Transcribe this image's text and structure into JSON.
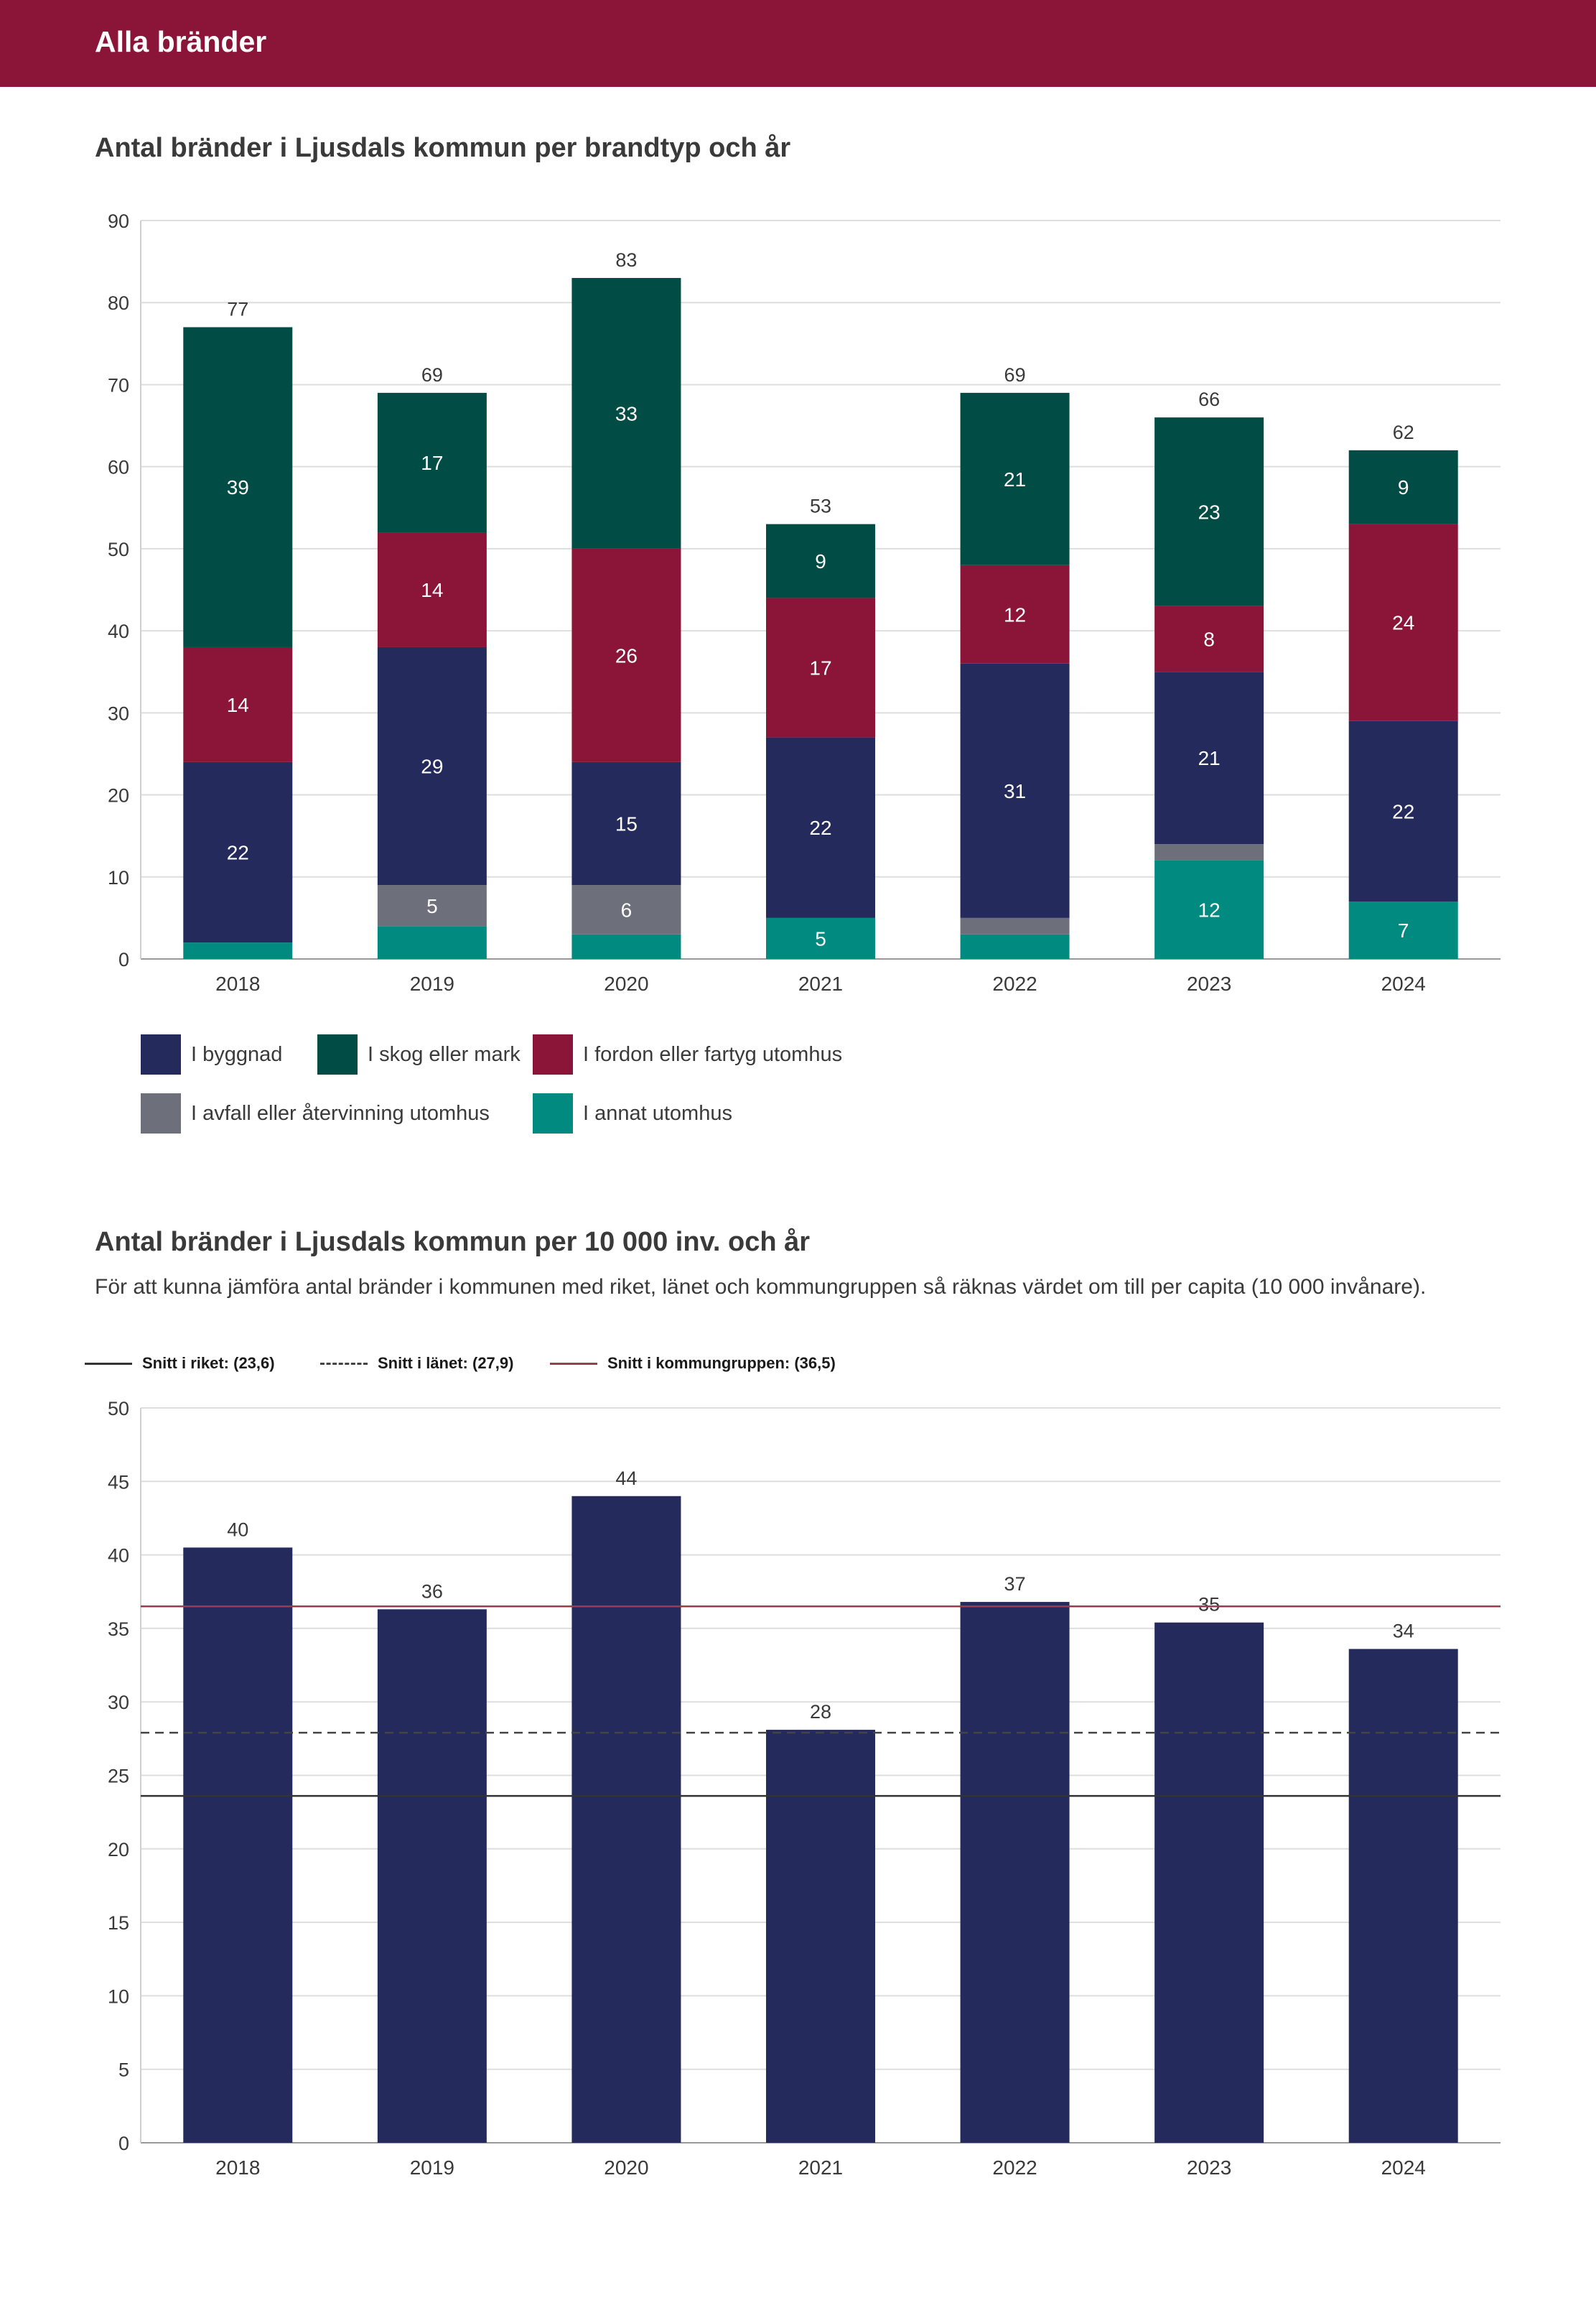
{
  "header": {
    "title": "Alla bränder"
  },
  "colors": {
    "header_bg": "#8b1538",
    "byggnad": "#252a5c",
    "skog": "#014c44",
    "fordon": "#8b1538",
    "avfall": "#6d707a",
    "annat": "#008a80",
    "grid": "#dedede",
    "ref_riket": "#333333",
    "ref_lanet": "#444444",
    "ref_grupp": "#9c3a4e"
  },
  "chart1": {
    "title": "Antal bränder i Ljusdals kommun per brandtyp och år"
  },
  "chart2": {
    "title": "Antal bränder i Ljusdals kommun per 10 000 inv. och år",
    "subtitle": "För att kunna jämföra antal bränder i kommunen med riket, länet och kommungruppen så räknas värdet om till per capita (10 000 invånare)."
  },
  "legend1": [
    {
      "label": "I byggnad",
      "color": "#252a5c"
    },
    {
      "label": "I skog eller mark",
      "color": "#014c44"
    },
    {
      "label": "I fordon eller fartyg utomhus",
      "color": "#8b1538"
    },
    {
      "label": "I avfall eller återvinning utomhus",
      "color": "#6d707a"
    },
    {
      "label": "I annat utomhus",
      "color": "#008a80"
    }
  ],
  "ref_legend": [
    {
      "label": "Snitt i riket: (23,6)",
      "style": "solid",
      "color": "#333333"
    },
    {
      "label": "Snitt i länet: (27,9)",
      "style": "dashed",
      "color": "#444444"
    },
    {
      "label": "Snitt i kommungruppen: (36,5)",
      "style": "solid",
      "color": "#9c3a4e"
    }
  ],
  "chart_data": [
    {
      "type": "bar",
      "stacked": true,
      "title": "Antal bränder i Ljusdals kommun per brandtyp och år",
      "categories": [
        "2018",
        "2019",
        "2020",
        "2021",
        "2022",
        "2023",
        "2024"
      ],
      "ylim": [
        0,
        90
      ],
      "yticks": [
        0,
        10,
        20,
        30,
        40,
        50,
        60,
        70,
        80,
        90
      ],
      "grid": true,
      "legend_position": "bottom",
      "totals": [
        77,
        69,
        83,
        53,
        69,
        66,
        62
      ],
      "series": [
        {
          "name": "I annat utomhus",
          "color": "#008a80",
          "values": [
            2,
            4,
            3,
            5,
            3,
            12,
            7
          ],
          "labels": [
            "",
            "",
            "",
            "5",
            "",
            "12",
            "7"
          ]
        },
        {
          "name": "I avfall eller återvinning utomhus",
          "color": "#6d707a",
          "values": [
            0,
            5,
            6,
            0,
            2,
            2,
            0
          ],
          "labels": [
            "",
            "5",
            "6",
            "",
            "",
            "",
            ""
          ]
        },
        {
          "name": "I byggnad",
          "color": "#252a5c",
          "values": [
            22,
            29,
            15,
            22,
            31,
            21,
            22
          ],
          "labels": [
            "22",
            "29",
            "15",
            "22",
            "31",
            "21",
            "22"
          ]
        },
        {
          "name": "I fordon eller fartyg utomhus",
          "color": "#8b1538",
          "values": [
            14,
            14,
            26,
            17,
            12,
            8,
            24
          ],
          "labels": [
            "14",
            "14",
            "26",
            "17",
            "12",
            "8",
            "24"
          ]
        },
        {
          "name": "I skog eller mark",
          "color": "#014c44",
          "values": [
            39,
            17,
            33,
            9,
            21,
            23,
            9
          ],
          "labels": [
            "39",
            "17",
            "33",
            "9",
            "21",
            "23",
            "9"
          ]
        }
      ]
    },
    {
      "type": "bar",
      "title": "Antal bränder i Ljusdals kommun per 10 000 inv. och år",
      "categories": [
        "2018",
        "2019",
        "2020",
        "2021",
        "2022",
        "2023",
        "2024"
      ],
      "values": [
        40.5,
        36.3,
        44.0,
        28.1,
        36.8,
        35.4,
        33.6
      ],
      "value_labels": [
        "40",
        "36",
        "44",
        "28",
        "37",
        "35",
        "34"
      ],
      "color": "#252a5c",
      "ylim": [
        0,
        50
      ],
      "yticks": [
        0,
        5,
        10,
        15,
        20,
        25,
        30,
        35,
        40,
        45,
        50
      ],
      "grid": true,
      "reference_lines": [
        {
          "name": "Snitt i riket",
          "value": 23.6,
          "style": "solid",
          "color": "#333333"
        },
        {
          "name": "Snitt i länet",
          "value": 27.9,
          "style": "dashed",
          "color": "#444444"
        },
        {
          "name": "Snitt i kommungruppen",
          "value": 36.5,
          "style": "solid",
          "color": "#9c3a4e"
        }
      ]
    }
  ]
}
